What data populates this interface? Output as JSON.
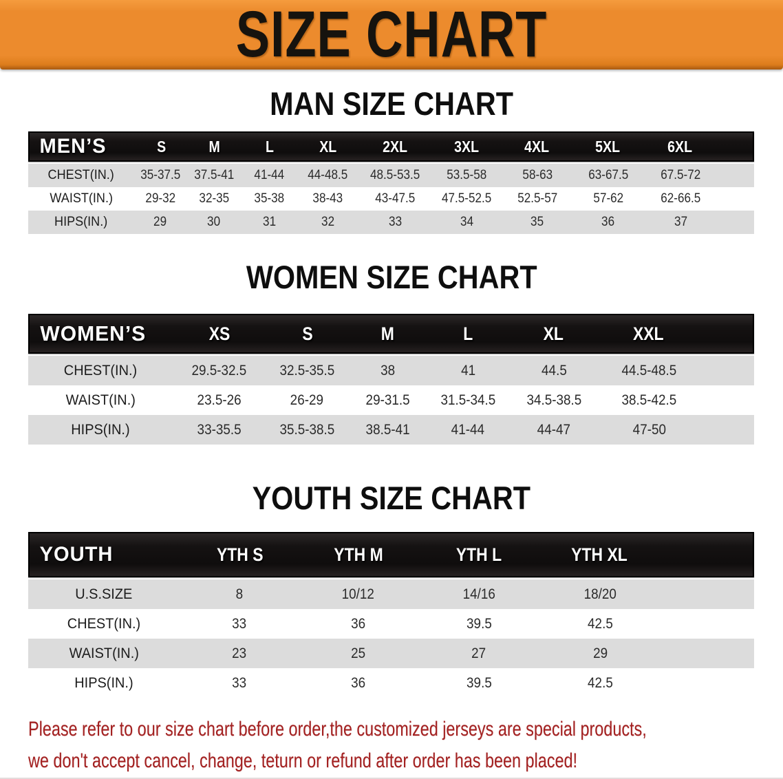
{
  "banner": {
    "title": "SIZE CHART"
  },
  "chart_data": [
    {
      "type": "table",
      "title": "MAN SIZE CHART",
      "corner_label": "MEN’S",
      "columns": [
        "S",
        "M",
        "L",
        "XL",
        "2XL",
        "3XL",
        "4XL",
        "5XL",
        "6XL"
      ],
      "rows": [
        {
          "label": "CHEST(IN.)",
          "values": [
            "35-37.5",
            "37.5-41",
            "41-44",
            "44-48.5",
            "48.5-53.5",
            "53.5-58",
            "58-63",
            "63-67.5",
            "67.5-72"
          ]
        },
        {
          "label": "WAIST(IN.)",
          "values": [
            "29-32",
            "32-35",
            "35-38",
            "38-43",
            "43-47.5",
            "47.5-52.5",
            "52.5-57",
            "57-62",
            "62-66.5"
          ]
        },
        {
          "label": "HIPS(IN.)",
          "values": [
            "29",
            "30",
            "31",
            "32",
            "33",
            "34",
            "35",
            "36",
            "37"
          ]
        }
      ]
    },
    {
      "type": "table",
      "title": "WOMEN SIZE CHART",
      "corner_label": "WOMEN’S",
      "columns": [
        "XS",
        "S",
        "M",
        "L",
        "XL",
        "XXL"
      ],
      "rows": [
        {
          "label": "CHEST(IN.)",
          "values": [
            "29.5-32.5",
            "32.5-35.5",
            "38",
            "41",
            "44.5",
            "44.5-48.5"
          ]
        },
        {
          "label": "WAIST(IN.)",
          "values": [
            "23.5-26",
            "26-29",
            "29-31.5",
            "31.5-34.5",
            "34.5-38.5",
            "38.5-42.5"
          ]
        },
        {
          "label": "HIPS(IN.)",
          "values": [
            "33-35.5",
            "35.5-38.5",
            "38.5-41",
            "41-44",
            "44-47",
            "47-50"
          ]
        }
      ]
    },
    {
      "type": "table",
      "title": "YOUTH SIZE CHART",
      "corner_label": "YOUTH",
      "columns": [
        "YTH S",
        "YTH M",
        "YTH L",
        "YTH XL"
      ],
      "rows": [
        {
          "label": "U.S.SIZE",
          "values": [
            "8",
            "10/12",
            "14/16",
            "18/20"
          ]
        },
        {
          "label": "CHEST(IN.)",
          "values": [
            "33",
            "36",
            "39.5",
            "42.5"
          ]
        },
        {
          "label": "WAIST(IN.)",
          "values": [
            "23",
            "25",
            "27",
            "29"
          ]
        },
        {
          "label": "HIPS(IN.)",
          "values": [
            "33",
            "36",
            "39.5",
            "42.5"
          ]
        }
      ]
    }
  ],
  "disclaimer": {
    "line1": "Please refer to our size chart before order,the customized jerseys are special products,",
    "line2": "we don't accept cancel, change, teturn or refund after order has been placed!"
  },
  "colors": {
    "banner_orange": "#EC8B2D",
    "banner_edge": "#A85A10",
    "header_bar": "#151212",
    "stripe_gray": "#DCDCDC",
    "text_dark": "#2B2B2B",
    "disclaimer_red": "#A32222"
  }
}
